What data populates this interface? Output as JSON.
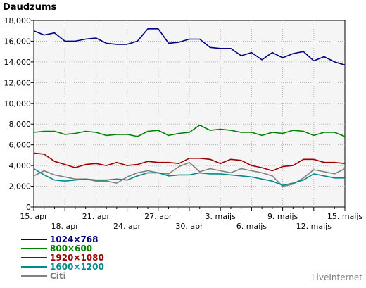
{
  "chart_data": {
    "type": "line",
    "title": "Daudzums",
    "xlabel": "",
    "ylabel": "",
    "ylim": [
      0,
      18000
    ],
    "yticks": [
      0,
      2000,
      4000,
      6000,
      8000,
      10000,
      12000,
      14000,
      16000,
      18000
    ],
    "ytick_labels": [
      "0",
      "2,000",
      "4,000",
      "6,000",
      "8,000",
      "10,000",
      "12,000",
      "14,000",
      "16,000",
      "18,000"
    ],
    "x": [
      "15. apr",
      "16. apr",
      "17. apr",
      "18. apr",
      "19. apr",
      "20. apr",
      "21. apr",
      "22. apr",
      "23. apr",
      "24. apr",
      "25. apr",
      "26. apr",
      "27. apr",
      "28. apr",
      "29. apr",
      "30. apr",
      "1. maijs",
      "2. maijs",
      "3. maijs",
      "4. maijs",
      "5. maijs",
      "6. maijs",
      "7. maijs",
      "8. maijs",
      "9. maijs",
      "10. maijs",
      "11. maijs",
      "12. maijs",
      "13. maijs",
      "14. maijs",
      "15. maijs"
    ],
    "xtick_labels_top": [
      "15. apr",
      "21. apr",
      "27. apr",
      "3. maijs",
      "9. maijs",
      "15. maijs"
    ],
    "xtick_labels_bottom": [
      "18. apr",
      "24. apr",
      "30. apr",
      "6. maijs",
      "12. maijs"
    ],
    "grid": true,
    "legend_position": "bottom-left",
    "series": [
      {
        "name": "1024×768",
        "color": "#000080",
        "values": [
          17000,
          16600,
          16800,
          16000,
          16000,
          16200,
          16300,
          15800,
          15700,
          15700,
          16000,
          17200,
          17200,
          15800,
          15900,
          16200,
          16200,
          15400,
          15300,
          15300,
          14600,
          14900,
          14200,
          14900,
          14400,
          14800,
          15000,
          14100,
          14500,
          14000,
          13700
        ]
      },
      {
        "name": "800×600",
        "color": "#008000",
        "values": [
          7200,
          7300,
          7300,
          7000,
          7100,
          7300,
          7200,
          6900,
          7000,
          7000,
          6800,
          7300,
          7400,
          6900,
          7100,
          7200,
          7900,
          7400,
          7500,
          7400,
          7200,
          7200,
          6900,
          7200,
          7100,
          7400,
          7300,
          6900,
          7200,
          7200,
          6800
        ]
      },
      {
        "name": "1920×1080",
        "color": "#990000",
        "values": [
          5200,
          5100,
          4400,
          4100,
          3800,
          4100,
          4200,
          4000,
          4300,
          4000,
          4100,
          4400,
          4300,
          4300,
          4200,
          4700,
          4700,
          4600,
          4200,
          4600,
          4500,
          4000,
          3800,
          3500,
          3900,
          4000,
          4600,
          4600,
          4300,
          4300,
          4200
        ]
      },
      {
        "name": "1600×1200",
        "color": "#008b8b",
        "values": [
          3700,
          3100,
          2600,
          2500,
          2600,
          2700,
          2600,
          2600,
          2700,
          2600,
          3000,
          3300,
          3300,
          3000,
          3100,
          3100,
          3300,
          3200,
          3200,
          3100,
          3000,
          2900,
          2700,
          2500,
          2100,
          2300,
          2600,
          3200,
          3000,
          2800,
          2800
        ]
      },
      {
        "name": "Citi",
        "color": "#808080",
        "values": [
          3000,
          3500,
          3100,
          2900,
          2700,
          2700,
          2500,
          2500,
          2300,
          2900,
          3300,
          3500,
          3300,
          3200,
          3900,
          4300,
          3400,
          3700,
          3500,
          3300,
          3700,
          3500,
          3300,
          3000,
          2000,
          2200,
          2800,
          3600,
          3400,
          3200,
          3700
        ]
      }
    ]
  },
  "watermark": "LiveInternet"
}
